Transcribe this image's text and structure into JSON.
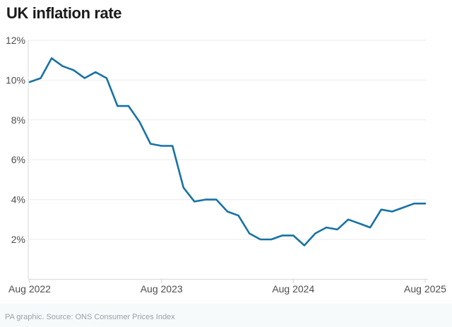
{
  "page": {
    "footer": "PA graphic. Source: ONS Consumer Prices Index"
  },
  "chart_data": {
    "type": "line",
    "title": "UK inflation rate",
    "xlabel": "",
    "ylabel": "",
    "unit": "%",
    "ylim": [
      0,
      12
    ],
    "grid": "horizontal",
    "legend": "none",
    "line_color": "#1772a4",
    "x_tick_labels": [
      "Aug 2022",
      "Aug 2023",
      "Aug 2024",
      "Aug 2025"
    ],
    "y_tick_labels": [
      "12%",
      "10%",
      "8%",
      "6%",
      "4%",
      "2%"
    ],
    "x_frequency": "monthly",
    "x_start_label": "Aug 2022",
    "x_end_label": "Aug 2025",
    "values": [
      9.9,
      10.1,
      11.1,
      10.7,
      10.5,
      10.1,
      10.4,
      10.1,
      8.7,
      8.7,
      7.9,
      6.8,
      6.7,
      6.7,
      4.6,
      3.9,
      4.0,
      4.0,
      3.4,
      3.2,
      2.3,
      2.0,
      2.0,
      2.2,
      2.2,
      1.7,
      2.3,
      2.6,
      2.5,
      3.0,
      2.8,
      2.6,
      3.5,
      3.4,
      3.6,
      3.8,
      3.8
    ]
  }
}
